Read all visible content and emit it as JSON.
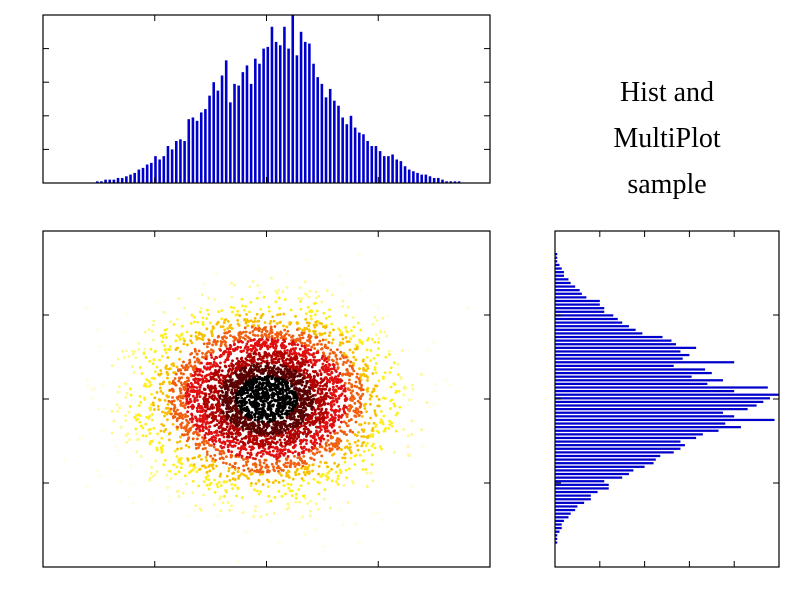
{
  "title_lines": [
    "Hist and",
    "MultiPlot",
    "sample"
  ],
  "colors": {
    "bar": "#0000cc",
    "axis": "#000000",
    "background": "#ffffff"
  },
  "chart_data": [
    {
      "id": "top-histogram",
      "type": "bar",
      "orientation": "vertical",
      "title": "",
      "xlabel": "",
      "ylabel": "",
      "grid": false,
      "xlim": [
        0,
        80
      ],
      "ylim": [
        0,
        100
      ],
      "values": [
        0,
        0,
        0,
        0,
        0,
        0,
        1,
        1,
        2,
        2,
        2,
        3,
        3,
        4,
        5,
        6,
        8,
        9,
        11,
        12,
        16,
        14,
        16,
        22,
        20,
        25,
        26,
        25,
        38,
        39,
        37,
        42,
        44,
        52,
        60,
        55,
        64,
        73,
        48,
        59,
        58,
        66,
        70,
        59,
        74,
        71,
        80,
        81,
        93,
        84,
        82,
        93,
        80,
        100,
        76,
        90,
        84,
        83,
        71,
        63,
        59,
        51,
        56,
        49,
        46,
        39,
        35,
        40,
        33,
        30,
        29,
        25,
        22,
        22,
        19,
        16,
        16,
        17,
        14,
        13,
        10,
        8,
        7,
        6,
        5,
        5,
        4,
        3,
        3,
        2,
        1,
        1,
        1,
        1
      ]
    },
    {
      "id": "scatter",
      "type": "scatter",
      "title": "",
      "xlabel": "",
      "ylabel": "",
      "grid": false,
      "xlim": [
        -4,
        4
      ],
      "ylim": [
        -4,
        4
      ],
      "distribution": "bivariate normal, mean 0, sd 1",
      "n_points": 5000,
      "colormap": "hot (dark at high density, yellow/white at low density)"
    },
    {
      "id": "right-histogram",
      "type": "bar",
      "orientation": "horizontal",
      "title": "",
      "xlabel": "",
      "ylabel": "",
      "grid": false,
      "xlim": [
        0,
        100
      ],
      "values": [
        1,
        1,
        1,
        2,
        3,
        4,
        4,
        6,
        7,
        9,
        11,
        12,
        14,
        20,
        20,
        22,
        22,
        26,
        28,
        30,
        33,
        36,
        39,
        48,
        52,
        54,
        63,
        56,
        60,
        57,
        80,
        53,
        67,
        70,
        61,
        75,
        68,
        95,
        80,
        100,
        96,
        93,
        90,
        86,
        75,
        80,
        98,
        76,
        83,
        73,
        66,
        63,
        56,
        58,
        56,
        53,
        47,
        45,
        44,
        40,
        35,
        33,
        30,
        22,
        24,
        24,
        19,
        16,
        16,
        13,
        10,
        9,
        7,
        6,
        4,
        3,
        3,
        2,
        1,
        1,
        1
      ]
    }
  ]
}
